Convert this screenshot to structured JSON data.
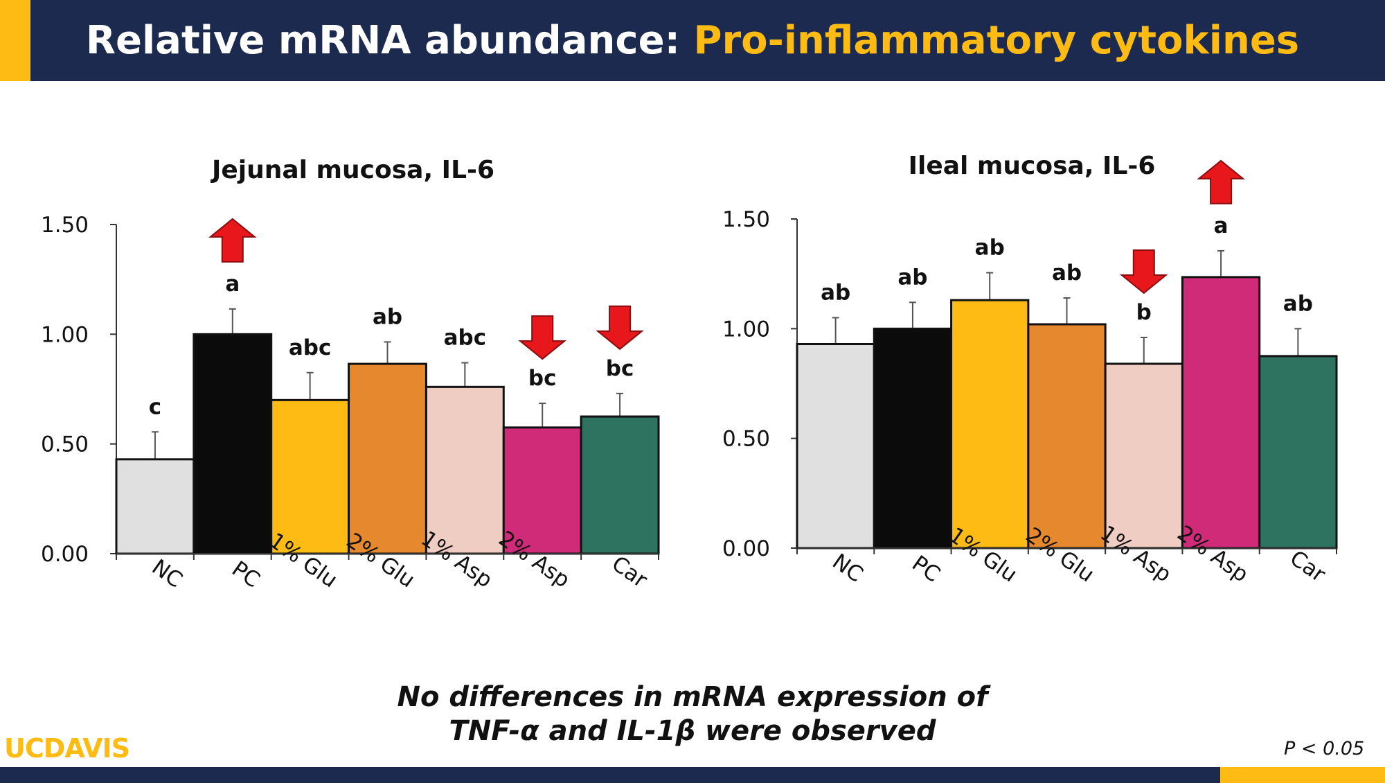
{
  "header": {
    "title_main": "Relative mRNA abundance: ",
    "title_highlight": "Pro-inflammatory cytokines"
  },
  "colors": {
    "navy": "#1b2a4e",
    "gold": "#fdbb14",
    "arrow": "#e8171c",
    "bars": [
      "#e0e0e0",
      "#0b0b0b",
      "#fdbb14",
      "#e6892e",
      "#f0cdc3",
      "#d02b78",
      "#2e7360"
    ]
  },
  "chart_data": [
    {
      "type": "bar",
      "title": "Jejunal mucosa, IL-6",
      "categories": [
        "NC",
        "PC",
        "1% Glu",
        "2% Glu",
        "1% Asp",
        "2% Asp",
        "Car"
      ],
      "values": [
        0.43,
        1.0,
        0.7,
        0.865,
        0.76,
        0.575,
        0.625
      ],
      "errors": [
        0.125,
        0.115,
        0.125,
        0.1,
        0.11,
        0.11,
        0.105
      ],
      "letters": [
        "c",
        "a",
        "abc",
        "ab",
        "abc",
        "bc",
        "bc"
      ],
      "arrows": [
        "",
        "up",
        "",
        "",
        "",
        "down",
        "down"
      ],
      "yticks": [
        "0.00",
        "0.50",
        "1.00",
        "1.50"
      ],
      "ylim": [
        0,
        1.5
      ],
      "xlabel": "",
      "ylabel": ""
    },
    {
      "type": "bar",
      "title": "Ileal mucosa, IL-6",
      "categories": [
        "NC",
        "PC",
        "1% Glu",
        "2% Glu",
        "1% Asp",
        "2% Asp",
        "Car"
      ],
      "values": [
        0.93,
        1.0,
        1.13,
        1.02,
        0.84,
        1.235,
        0.875
      ],
      "errors": [
        0.12,
        0.12,
        0.125,
        0.12,
        0.12,
        0.12,
        0.125
      ],
      "letters": [
        "ab",
        "ab",
        "ab",
        "ab",
        "b",
        "a",
        "ab"
      ],
      "arrows": [
        "",
        "",
        "",
        "",
        "down",
        "up",
        ""
      ],
      "yticks": [
        "0.00",
        "0.50",
        "1.00",
        "1.50"
      ],
      "ylim": [
        0,
        1.5
      ],
      "xlabel": "",
      "ylabel": ""
    }
  ],
  "footer": {
    "note_line1": "No differences in mRNA expression of",
    "note_line2": "TNF-α and IL-1β were observed",
    "logo": "UCDAVIS",
    "pvalue": "P < 0.05"
  }
}
